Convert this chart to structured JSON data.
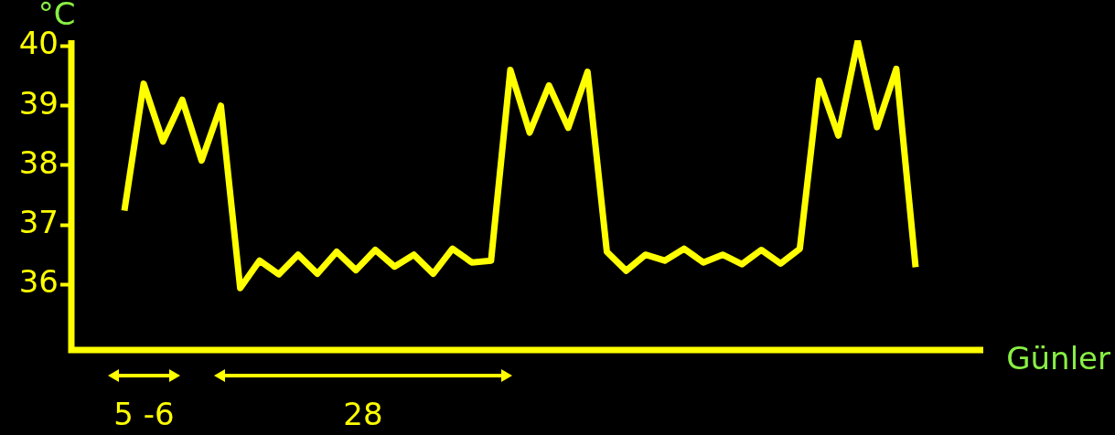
{
  "chart_data": {
    "type": "line",
    "ylabel": "°C",
    "xlabel": "Günler",
    "categories": [
      null,
      null,
      null,
      null,
      null,
      null,
      null,
      null,
      null,
      null,
      null,
      null,
      null,
      null,
      null,
      null,
      null,
      null,
      null,
      null,
      null,
      null,
      null,
      null,
      null,
      null,
      null,
      null,
      null,
      null,
      null,
      null,
      null,
      null,
      null,
      null,
      null,
      null,
      null,
      null,
      null,
      null
    ],
    "ylim": [
      34.9,
      40.1
    ],
    "yticks": [
      36,
      37,
      38,
      39,
      40
    ],
    "grid": false,
    "legend": false,
    "marker": "none",
    "line_style": "solid",
    "annotations": [
      "5 -6",
      "28"
    ],
    "series": [
      {
        "color": "#ffff00",
        "values": [
          37.24,
          39.37,
          38.4,
          39.1,
          38.08,
          39.0,
          35.94,
          36.4,
          36.17,
          36.5,
          36.18,
          36.55,
          36.24,
          36.58,
          36.3,
          36.5,
          36.18,
          36.6,
          36.37,
          36.4,
          39.6,
          38.55,
          39.34,
          38.63,
          39.57,
          36.55,
          36.23,
          36.5,
          36.4,
          36.6,
          36.37,
          36.5,
          36.34,
          36.58,
          36.35,
          36.6,
          39.42,
          38.5,
          40.08,
          38.64,
          39.62,
          36.29
        ]
      }
    ]
  }
}
